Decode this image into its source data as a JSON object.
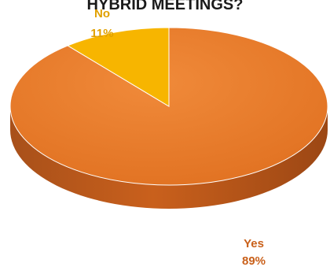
{
  "chart_data": {
    "type": "pie",
    "title": "HYBRID MEETINGS?",
    "slices": [
      {
        "label": "Yes",
        "value": 89,
        "pct_label": "89%",
        "color": "#E87722",
        "label_color": "#C9601A"
      },
      {
        "label": "No",
        "value": 11,
        "pct_label": "11%",
        "color": "#F7B500",
        "label_color": "#E0A000"
      }
    ],
    "style": "3d"
  }
}
